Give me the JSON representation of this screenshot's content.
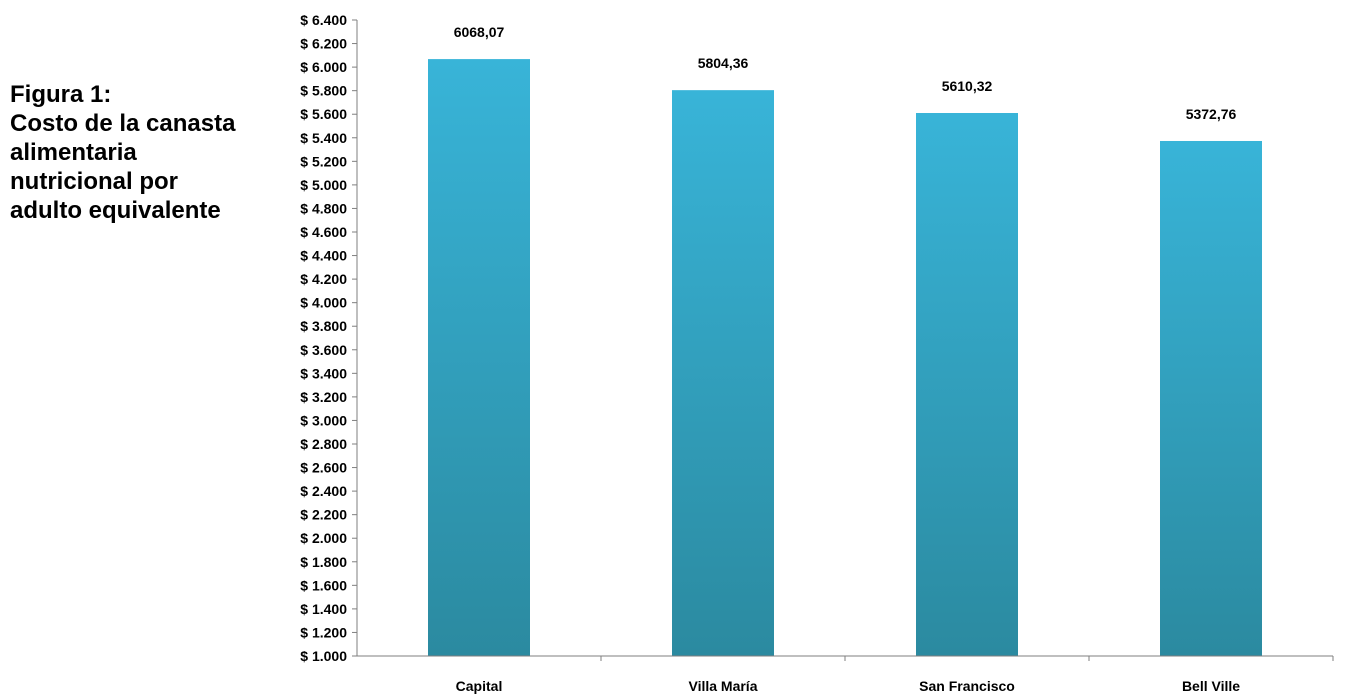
{
  "title_lines": [
    "Figura 1:",
    "Costo de la canasta",
    "alimentaria",
    "nutricional por",
    "adulto equivalente"
  ],
  "chart_data": {
    "type": "bar",
    "categories": [
      "Capital",
      "Villa María",
      "San Francisco",
      "Bell Ville"
    ],
    "values": [
      6068.07,
      5804.36,
      5610.32,
      5372.76
    ],
    "data_labels": [
      "6068,07",
      "5804,36",
      "5610,32",
      "5372,76"
    ],
    "ylim": [
      1000,
      6400
    ],
    "ytick_step": 200,
    "ytick_prefix": "$ ",
    "thousands_separator": ".",
    "xlabel": "",
    "ylabel": "",
    "grid": false,
    "legend": "none",
    "bar_color_top": "#38b4d8",
    "bar_color_bottom": "#2b8aa0",
    "axis_color": "#7f7f7f"
  }
}
